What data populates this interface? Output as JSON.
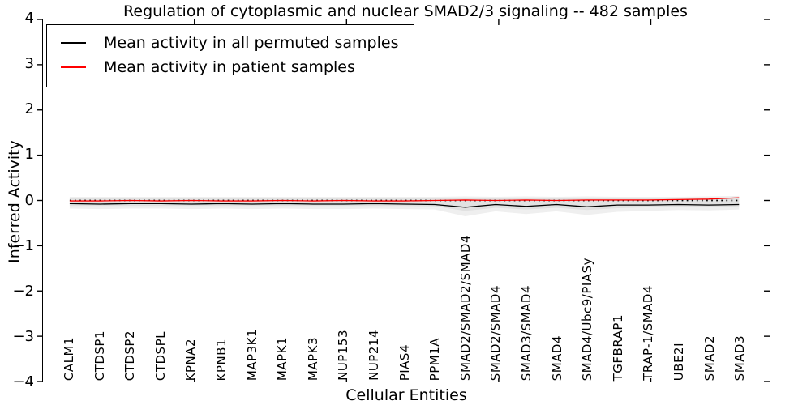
{
  "chart_data": {
    "type": "line",
    "title": "Regulation of cytoplasmic and nuclear SMAD2/3 signaling -- 482 samples",
    "xlabel": "Cellular Entities",
    "ylabel": "Inferred Activity",
    "ylim": [
      -4,
      4
    ],
    "ytick_labels": [
      "4",
      "3",
      "2",
      "1",
      "0",
      "−1",
      "−2",
      "−3",
      "−4"
    ],
    "ytick_values": [
      4,
      3,
      2,
      1,
      0,
      -1,
      -2,
      -3,
      -4
    ],
    "grid": false,
    "legend_position": "upper-left",
    "categories": [
      "CALM1",
      "CTDSP1",
      "CTDSP2",
      "CTDSPL",
      "KPNA2",
      "KPNB1",
      "MAP3K1",
      "MAPK1",
      "MAPK3",
      "NUP153",
      "NUP214",
      "PIAS4",
      "PPM1A",
      "SMAD2/SMAD2/SMAD4",
      "SMAD2/SMAD4",
      "SMAD3/SMAD4",
      "SMAD4",
      "SMAD4/Ubc9/PIASy",
      "TGFBRAP1",
      "TRAP-1/SMAD4",
      "UBE2I",
      "SMAD2",
      "SMAD3"
    ],
    "series": [
      {
        "name": "Mean activity in all permuted samples",
        "color": "#000000",
        "values": [
          -0.07,
          -0.08,
          -0.07,
          -0.07,
          -0.08,
          -0.07,
          -0.08,
          -0.07,
          -0.08,
          -0.08,
          -0.07,
          -0.08,
          -0.09,
          -0.15,
          -0.09,
          -0.13,
          -0.09,
          -0.14,
          -0.1,
          -0.1,
          -0.09,
          -0.1,
          -0.09
        ]
      },
      {
        "name": "Mean activity in patient samples",
        "color": "#ff0000",
        "values": [
          -0.01,
          -0.01,
          0.0,
          -0.01,
          0.0,
          -0.01,
          -0.01,
          0.0,
          -0.01,
          0.0,
          -0.01,
          -0.01,
          0.0,
          0.01,
          0.0,
          0.01,
          0.0,
          0.01,
          0.01,
          0.01,
          0.02,
          0.03,
          0.06
        ]
      }
    ],
    "band_outer": {
      "color": "#efefef",
      "upper": [
        0.08,
        0.08,
        0.08,
        0.08,
        0.08,
        0.08,
        0.08,
        0.08,
        0.08,
        0.08,
        0.08,
        0.08,
        0.08,
        0.09,
        0.08,
        0.09,
        0.08,
        0.09,
        0.08,
        0.08,
        0.08,
        0.09,
        0.1
      ],
      "lower": [
        -0.18,
        -0.19,
        -0.18,
        -0.18,
        -0.19,
        -0.18,
        -0.19,
        -0.18,
        -0.19,
        -0.19,
        -0.18,
        -0.19,
        -0.2,
        -0.35,
        -0.24,
        -0.3,
        -0.24,
        -0.32,
        -0.25,
        -0.23,
        -0.21,
        -0.22,
        -0.2
      ]
    },
    "band_inner": {
      "color": "#e1e1e1",
      "upper": [
        0.05,
        0.05,
        0.05,
        0.05,
        0.05,
        0.05,
        0.05,
        0.05,
        0.05,
        0.05,
        0.05,
        0.05,
        0.05,
        0.06,
        0.05,
        0.06,
        0.05,
        0.06,
        0.05,
        0.05,
        0.05,
        0.06,
        0.07
      ],
      "lower": [
        -0.12,
        -0.12,
        -0.12,
        -0.12,
        -0.12,
        -0.12,
        -0.12,
        -0.12,
        -0.12,
        -0.12,
        -0.12,
        -0.12,
        -0.13,
        -0.23,
        -0.16,
        -0.2,
        -0.16,
        -0.21,
        -0.17,
        -0.15,
        -0.14,
        -0.15,
        -0.13
      ]
    },
    "zero_line": {
      "value": 0,
      "style": "dotted",
      "color": "#000000"
    },
    "legend": {
      "items": [
        {
          "label": "Mean activity in all permuted samples",
          "color": "#000000"
        },
        {
          "label": "Mean activity in patient samples",
          "color": "#ff0000"
        }
      ]
    }
  }
}
